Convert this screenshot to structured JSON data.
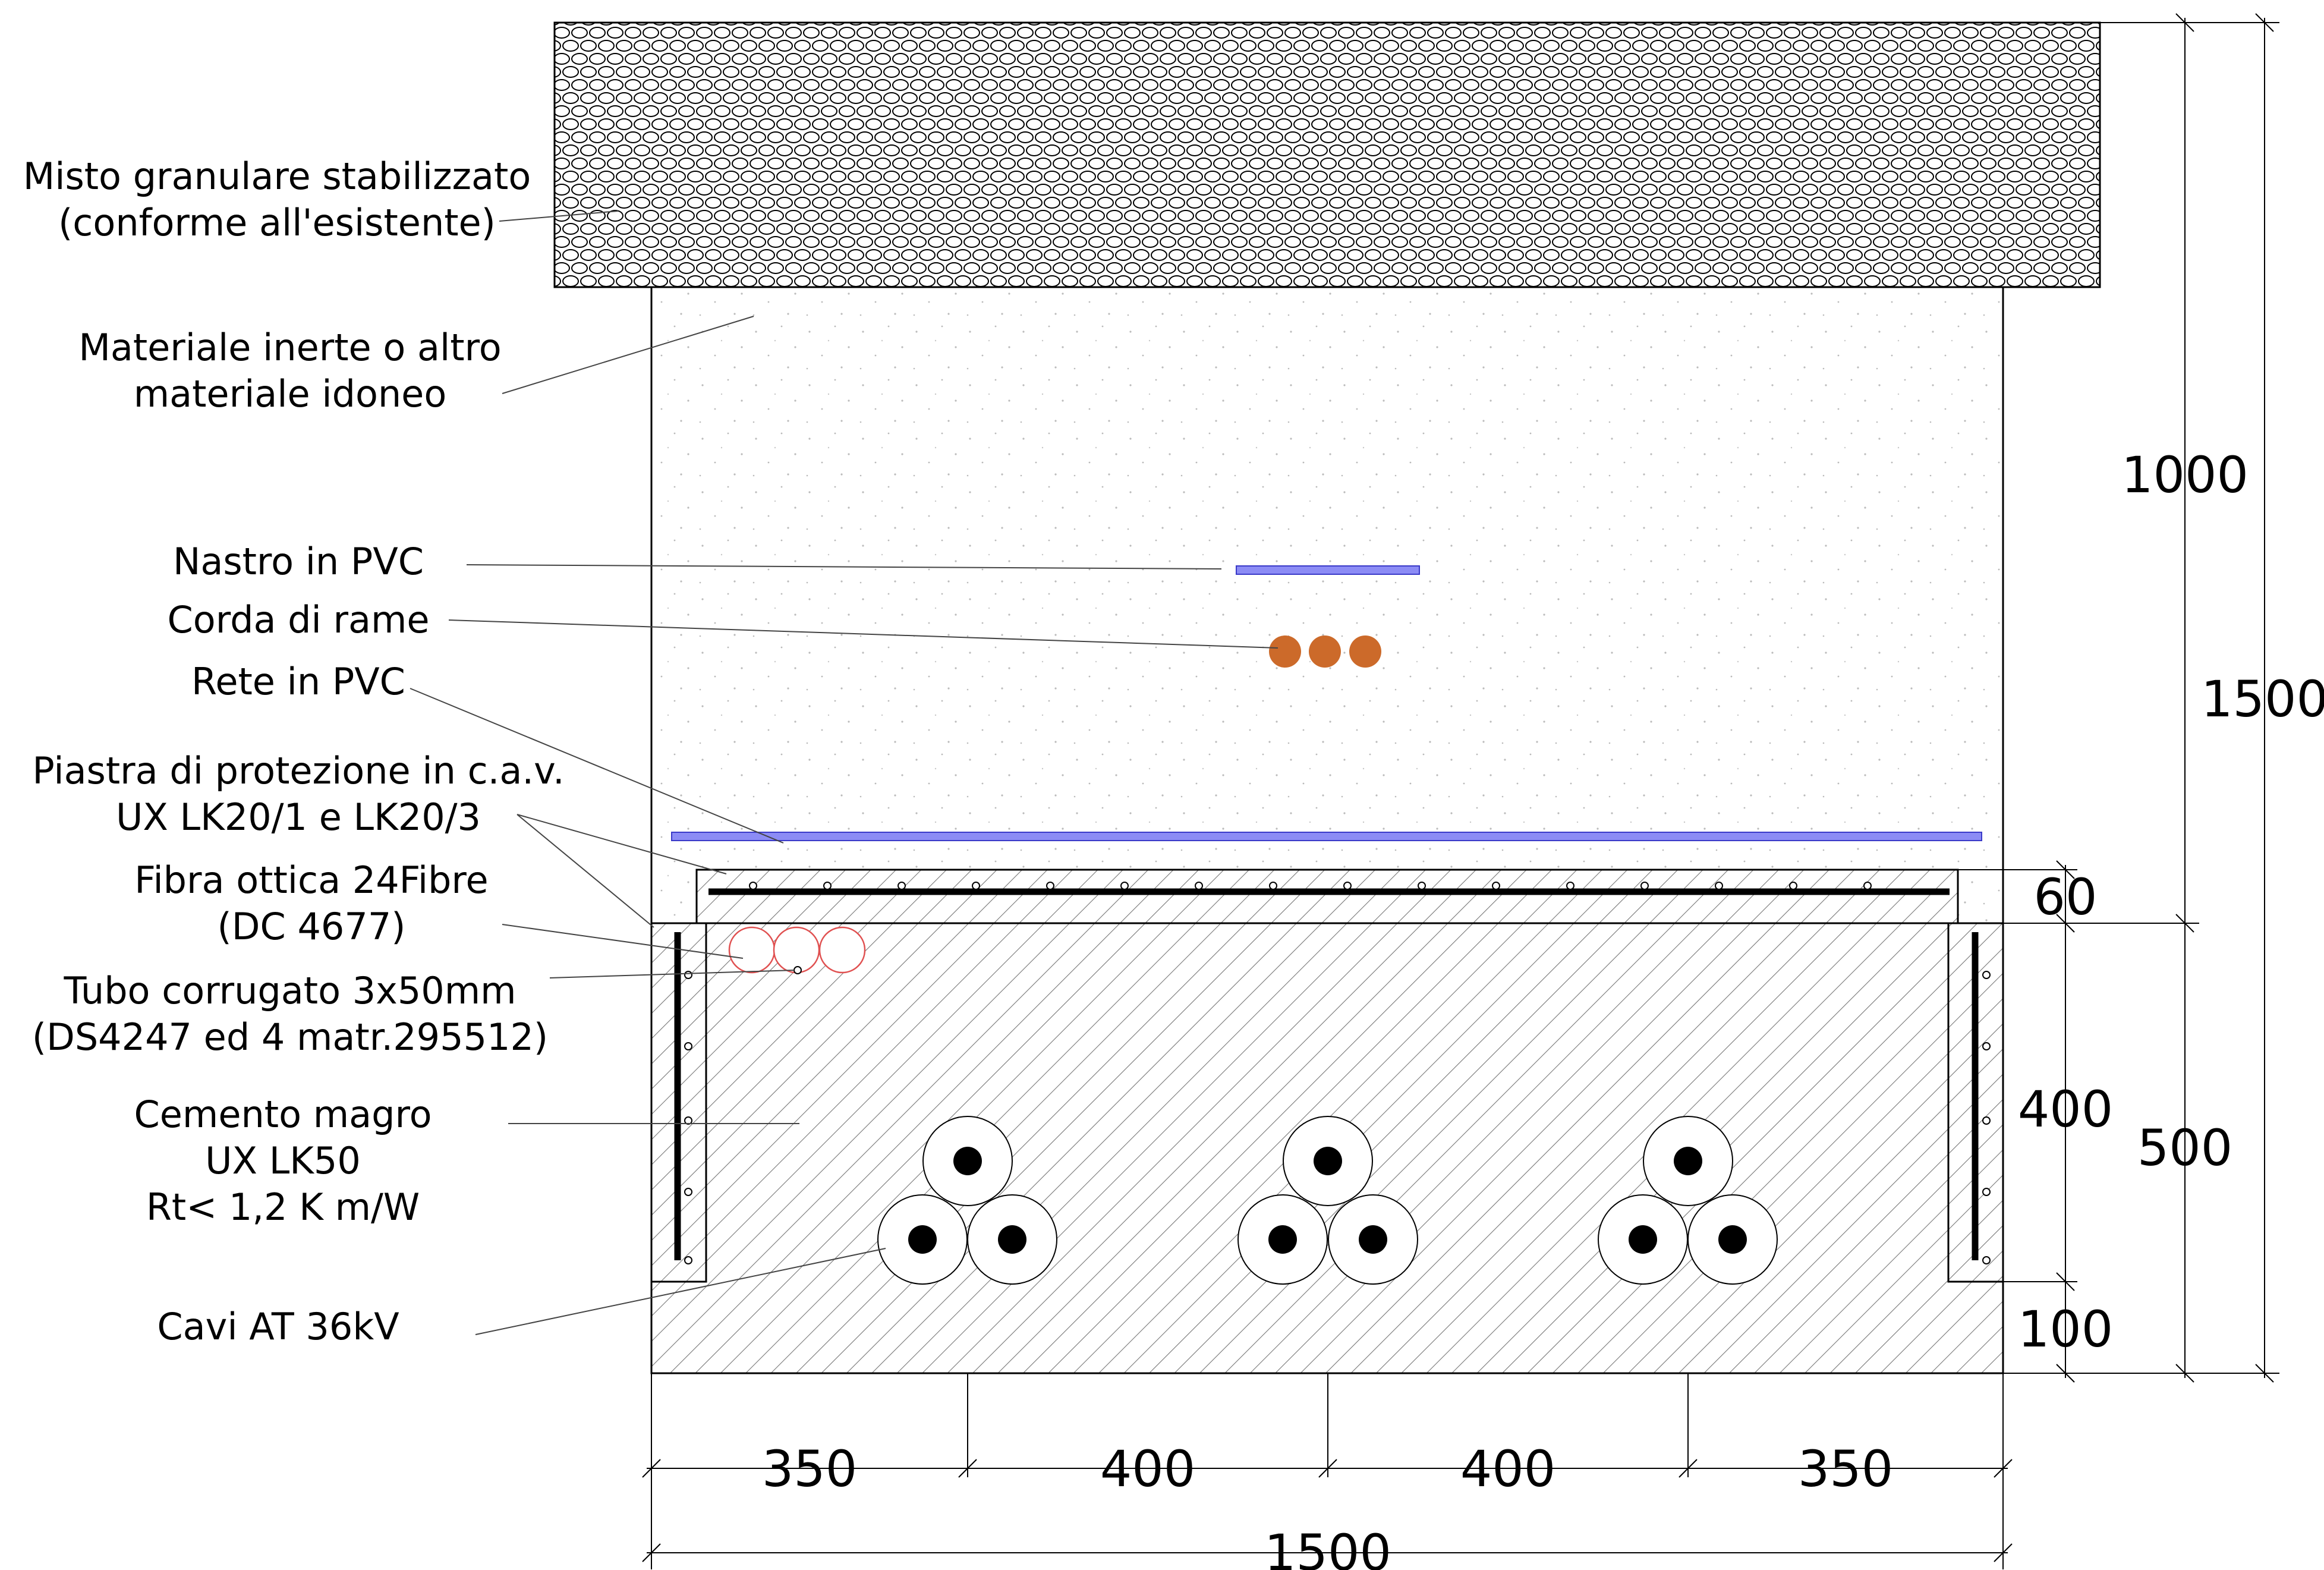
{
  "labels": {
    "misto_1": "Misto granulare stabilizzato",
    "misto_2": "(conforme all'esistente)",
    "inerte_1": "Materiale inerte o altro",
    "inerte_2": "materiale idoneo",
    "nastro": "Nastro in PVC",
    "corda": "Corda di rame",
    "rete": "Rete in PVC",
    "piastra_1": "Piastra di protezione in c.a.v.",
    "piastra_2": "UX LK20/1 e LK20/3",
    "fibra_1": "Fibra ottica 24Fibre",
    "fibra_2": "(DC 4677)",
    "tubo_1": "Tubo corrugato 3x50mm",
    "tubo_2": "(DS4247 ed 4 matr.295512)",
    "cemento_1": "Cemento magro",
    "cemento_2": "UX LK50",
    "cemento_3": "Rt< 1,2 K m/W",
    "cavi": "Cavi AT 36kV"
  },
  "dimensions": {
    "d1000": "1000",
    "d1500_v": "1500",
    "d60": "60",
    "d400_v": "400",
    "d500": "500",
    "d100": "100",
    "b350_a": "350",
    "b400_a": "400",
    "b400_b": "400",
    "b350_b": "350",
    "b1500": "1500"
  },
  "colors": {
    "pvc_tape": "#8c8cf5",
    "copper": "#cc6a2a",
    "conduit": "#e05050",
    "line": "#000000"
  }
}
